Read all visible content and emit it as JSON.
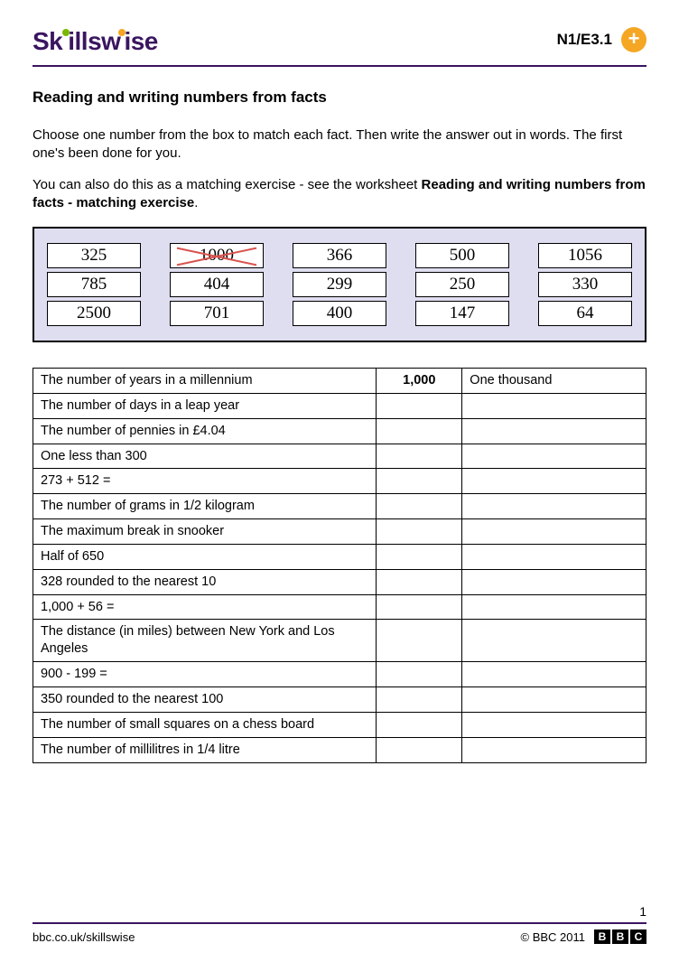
{
  "header": {
    "logo_text": "Skillswise",
    "code": "N1/E3.1",
    "plus": "+"
  },
  "title": "Reading and writing numbers from facts",
  "instructions": "Choose one number from the box to match each fact. Then write the answer out in words. The first one's been done for you.",
  "instructions2_pre": "You can also do this as a matching exercise - see the worksheet ",
  "instructions2_bold": "Reading and writing numbers from facts - matching exercise",
  "instructions2_post": ".",
  "number_box": {
    "rows": [
      [
        {
          "v": "325",
          "crossed": false
        },
        {
          "v": "1000",
          "crossed": true
        },
        {
          "v": "366",
          "crossed": false
        },
        {
          "v": "500",
          "crossed": false
        },
        {
          "v": "1056",
          "crossed": false
        }
      ],
      [
        {
          "v": "785",
          "crossed": false
        },
        {
          "v": "404",
          "crossed": false
        },
        {
          "v": "299",
          "crossed": false
        },
        {
          "v": "250",
          "crossed": false
        },
        {
          "v": "330",
          "crossed": false
        }
      ],
      [
        {
          "v": "2500",
          "crossed": false
        },
        {
          "v": "701",
          "crossed": false
        },
        {
          "v": "400",
          "crossed": false
        },
        {
          "v": "147",
          "crossed": false
        },
        {
          "v": "64",
          "crossed": false
        }
      ]
    ],
    "bg_color": "#dedef0",
    "cell_bg": "#ffffff",
    "border_color": "#000000",
    "cross_color": "#d9534f"
  },
  "facts": [
    {
      "fact": "The number of years in a millennium",
      "num": "1,000",
      "word": "One thousand"
    },
    {
      "fact": "The number of days in a leap year",
      "num": "",
      "word": ""
    },
    {
      "fact": "The number of pennies in £4.04",
      "num": "",
      "word": ""
    },
    {
      "fact": "One less than 300",
      "num": "",
      "word": ""
    },
    {
      "fact": "273 + 512 =",
      "num": "",
      "word": ""
    },
    {
      "fact": "The number of grams in 1/2 kilogram",
      "num": "",
      "word": ""
    },
    {
      "fact": "The maximum break in snooker",
      "num": "",
      "word": ""
    },
    {
      "fact": "Half of 650",
      "num": "",
      "word": ""
    },
    {
      "fact": "328 rounded to the nearest 10",
      "num": "",
      "word": ""
    },
    {
      "fact": "1,000 + 56 =",
      "num": "",
      "word": ""
    },
    {
      "fact": "The distance (in miles) between New York and Los Angeles",
      "num": "",
      "word": ""
    },
    {
      "fact": "900 -  199 =",
      "num": "",
      "word": ""
    },
    {
      "fact": "350 rounded to the nearest 100",
      "num": "",
      "word": ""
    },
    {
      "fact": "The number of small squares on a chess board",
      "num": "",
      "word": ""
    },
    {
      "fact": "The number of millilitres in 1/4 litre",
      "num": "",
      "word": ""
    }
  ],
  "page_number": "1",
  "footer": {
    "url": "bbc.co.uk/skillswise",
    "copyright": "© BBC 2011",
    "bbc": [
      "B",
      "B",
      "C"
    ]
  },
  "colors": {
    "brand_purple": "#3a1560",
    "accent_orange": "#f5a623",
    "accent_green": "#7ab800"
  }
}
